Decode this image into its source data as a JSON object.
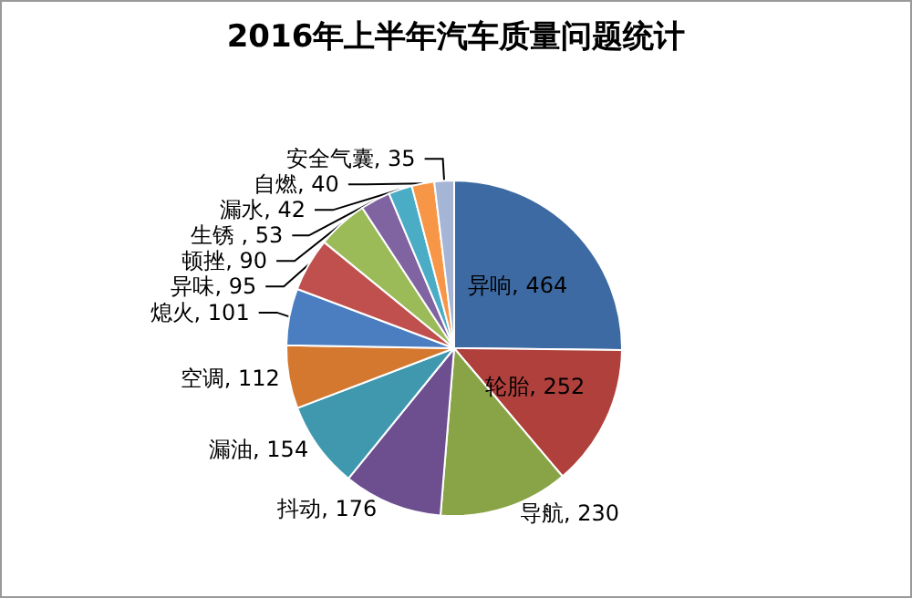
{
  "chart_data": {
    "type": "pie",
    "title": "2016年上半年汽车质量问题统计",
    "categories": [
      "异响",
      "轮胎",
      "导航",
      "抖动",
      "漏油",
      "空调",
      "熄火",
      "异味",
      "顿挫",
      "生锈",
      "漏水",
      "自燃",
      "安全气囊"
    ],
    "values": [
      464,
      252,
      230,
      176,
      154,
      112,
      101,
      95,
      90,
      53,
      42,
      40,
      35
    ],
    "colors": [
      "#3d6aa3",
      "#b0403c",
      "#88a447",
      "#6d4f8f",
      "#3f98ae",
      "#d5782f",
      "#4a7ec0",
      "#c0504d",
      "#9bbb59",
      "#8064a2",
      "#4bacc6",
      "#f79646",
      "#a5b5d6"
    ],
    "value_labels": [
      ", 464",
      ", 252",
      ", 230",
      ", 176",
      ", 154",
      ", 112",
      ", 101",
      ", 95",
      ", 90",
      " , 53",
      ", 42",
      ", 40",
      ", 35"
    ]
  }
}
